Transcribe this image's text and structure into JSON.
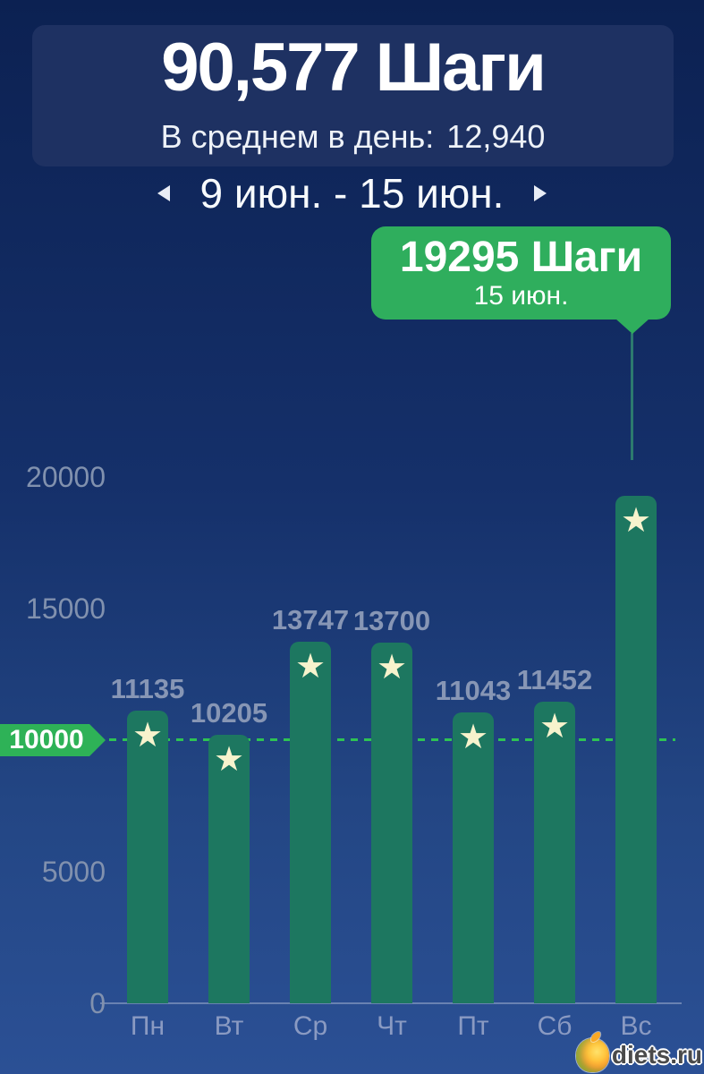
{
  "header": {
    "title": "90,577 Шаги",
    "average_label": "В среднем в день:",
    "average_value": "12,940"
  },
  "date_nav": {
    "range": "9 июн. - 15 июн."
  },
  "tooltip": {
    "title": "19295 Шаги",
    "date": "15 июн."
  },
  "goal": {
    "label": "10000",
    "value": 10000
  },
  "watermark": {
    "text": "diets.ru"
  },
  "colors": {
    "background_top": "#0c2152",
    "background_bottom": "#2b5095",
    "header_card": "#1e3162",
    "bar": "#1d7760",
    "tooltip_green": "#2fae5d",
    "goal_badge_green": "#2eb257",
    "goal_dash_green": "#2ec353",
    "star_cream": "#f7f3cd",
    "value_label_gray": "#8796b5",
    "axis_gray": "#8191ae"
  },
  "chart_data": {
    "type": "bar",
    "title": "90,577 Шаги (steps per day)",
    "categories": [
      "Пн",
      "Вт",
      "Ср",
      "Чт",
      "Пт",
      "Сб",
      "Вс"
    ],
    "values": [
      11135,
      10205,
      13747,
      13700,
      11043,
      11452,
      19295
    ],
    "value_labels": [
      "11135",
      "10205",
      "13747",
      "13700",
      "11043",
      "11452",
      ""
    ],
    "star_on_bars": [
      true,
      true,
      true,
      true,
      true,
      true,
      true
    ],
    "xlabel": "",
    "ylabel": "",
    "yticks": [
      0,
      5000,
      10000,
      15000,
      20000
    ],
    "ylim": [
      0,
      21000
    ],
    "grid": false,
    "legend_position": "none",
    "goal_line": 10000,
    "selected_bar": {
      "index": 6,
      "category": "Вс",
      "value": 19295,
      "tooltip_title": "19295 Шаги",
      "tooltip_date": "15 июн."
    },
    "summary": {
      "total": "90,577",
      "average_per_day": "12,940",
      "week_range": "9 июн. - 15 июн."
    }
  }
}
